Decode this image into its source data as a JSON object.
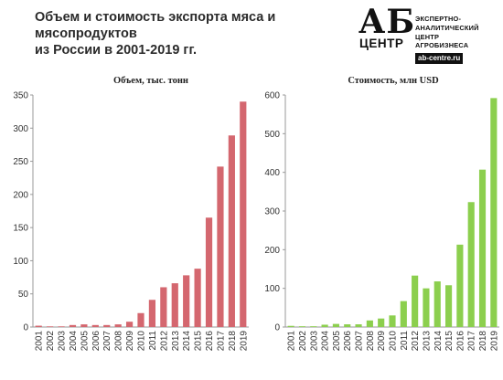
{
  "header": {
    "title_line1": "Объем и стоимость экспорта мяса и мясопродуктов",
    "title_line2": "из России в 2001-2019 гг."
  },
  "logo": {
    "mark": "АБ",
    "mark_sub": "ЦЕНТР",
    "lines": [
      "ЭКСПЕРТНО-",
      "АНАЛИТИЧЕСКИЙ",
      "ЦЕНТР",
      "АГРОБИЗНЕСА"
    ],
    "url": "ab-centre.ru"
  },
  "chart_data": [
    {
      "type": "bar",
      "title": "Объем, тыс. тонн",
      "categories": [
        "2001",
        "2002",
        "2003",
        "2004",
        "2005",
        "2006",
        "2007",
        "2008",
        "2009",
        "2010",
        "2011",
        "2012",
        "2013",
        "2014",
        "2015",
        "2016",
        "2017",
        "2018",
        "2019"
      ],
      "values": [
        2,
        1,
        1,
        3,
        4,
        3,
        3,
        4,
        8,
        21,
        41,
        60,
        66,
        78,
        88,
        165,
        242,
        289,
        340
      ],
      "ylim": [
        0,
        350
      ],
      "yticks": [
        0,
        50,
        100,
        150,
        200,
        250,
        300,
        350
      ],
      "xlabel": "",
      "ylabel": "",
      "color": "#d4676f",
      "grid": false
    },
    {
      "type": "bar",
      "title": "Стоимость, млн USD",
      "categories": [
        "2001",
        "2002",
        "2003",
        "2004",
        "2005",
        "2006",
        "2007",
        "2008",
        "2009",
        "2010",
        "2011",
        "2012",
        "2013",
        "2014",
        "2015",
        "2016",
        "2017",
        "2018",
        "2019"
      ],
      "values": [
        3,
        2,
        2,
        6,
        8,
        7,
        7,
        17,
        22,
        30,
        67,
        133,
        100,
        118,
        108,
        213,
        323,
        407,
        592
      ],
      "ylim": [
        0,
        600
      ],
      "yticks": [
        0,
        100,
        200,
        300,
        400,
        500,
        600
      ],
      "xlabel": "",
      "ylabel": "",
      "color": "#8ccf4e",
      "grid": false
    }
  ]
}
